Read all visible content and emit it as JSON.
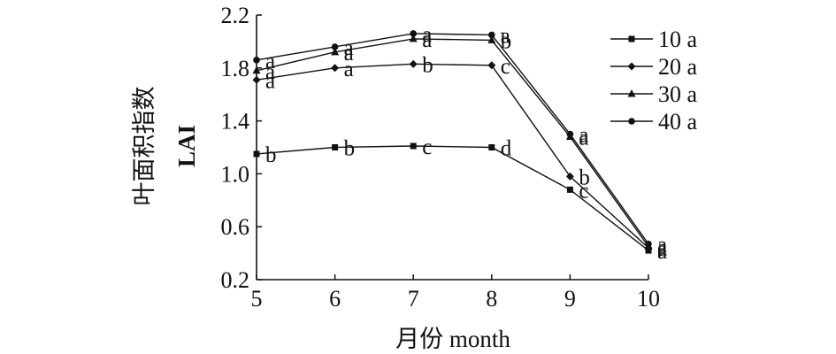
{
  "chart_data": {
    "type": "line",
    "title": "",
    "xlabel": "月份 month",
    "ylabel_cn": "叶面积指数",
    "ylabel_en": "LAI",
    "x": [
      5,
      6,
      7,
      8,
      9,
      10
    ],
    "xlim": [
      5,
      10
    ],
    "ylim": [
      0.2,
      2.2
    ],
    "yticks": [
      "0.2",
      "0.6",
      "1.0",
      "1.4",
      "1.8",
      "2.2"
    ],
    "xticks": [
      "5",
      "6",
      "7",
      "8",
      "9",
      "10"
    ],
    "grid": false,
    "legend_position": "top-right",
    "series": [
      {
        "name": "10 a",
        "marker": "square",
        "values": [
          1.15,
          1.2,
          1.21,
          1.2,
          0.88,
          0.42
        ],
        "letters": [
          "b",
          "b",
          "c",
          "d",
          "c",
          "a"
        ]
      },
      {
        "name": "20 a",
        "marker": "diamond",
        "values": [
          1.71,
          1.8,
          1.83,
          1.82,
          0.98,
          0.44
        ],
        "letters": [
          "a",
          "a",
          "b",
          "c",
          "b",
          "a"
        ]
      },
      {
        "name": "30 a",
        "marker": "triangle",
        "values": [
          1.78,
          1.92,
          2.02,
          2.01,
          1.28,
          0.45
        ],
        "letters": [
          "a",
          "a",
          "a",
          "b",
          "a",
          "a"
        ]
      },
      {
        "name": "40 a",
        "marker": "circle",
        "values": [
          1.86,
          1.96,
          2.06,
          2.05,
          1.3,
          0.47
        ],
        "letters": [
          "a",
          "a",
          "a",
          "a",
          "a",
          "a"
        ]
      }
    ]
  }
}
